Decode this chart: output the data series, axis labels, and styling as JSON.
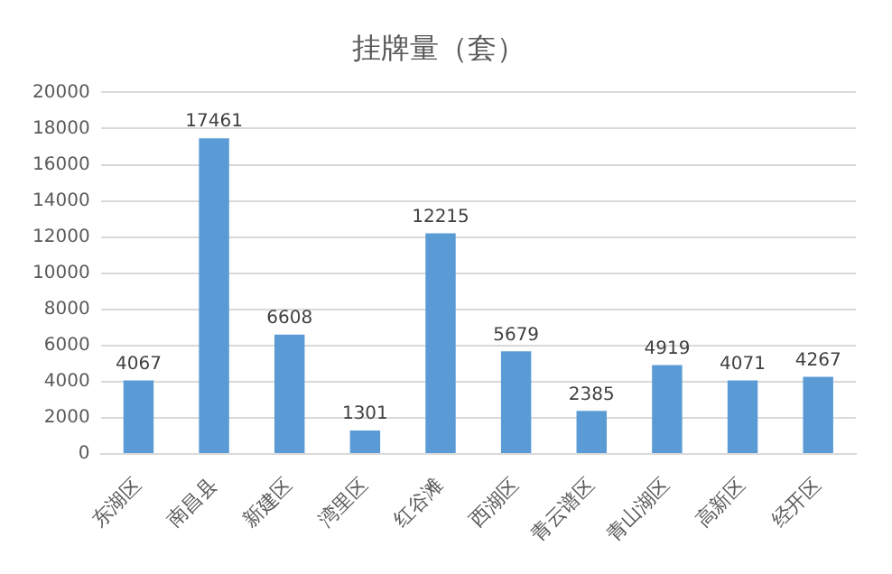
{
  "chart_data": {
    "type": "bar",
    "title": "挂牌量（套）",
    "categories": [
      "东湖区",
      "南昌县",
      "新建区",
      "湾里区",
      "红谷滩",
      "西湖区",
      "青云谱区",
      "青山湖区",
      "高新区",
      "经开区"
    ],
    "values": [
      4067,
      17461,
      6608,
      1301,
      12215,
      5679,
      2385,
      4919,
      4071,
      4267
    ],
    "color": "#5b9bd5",
    "ylim": [
      0,
      20000
    ],
    "yticks": [
      0,
      2000,
      4000,
      6000,
      8000,
      10000,
      12000,
      14000,
      16000,
      18000,
      20000
    ],
    "grid": "y",
    "legend": false,
    "data_labels": true
  }
}
